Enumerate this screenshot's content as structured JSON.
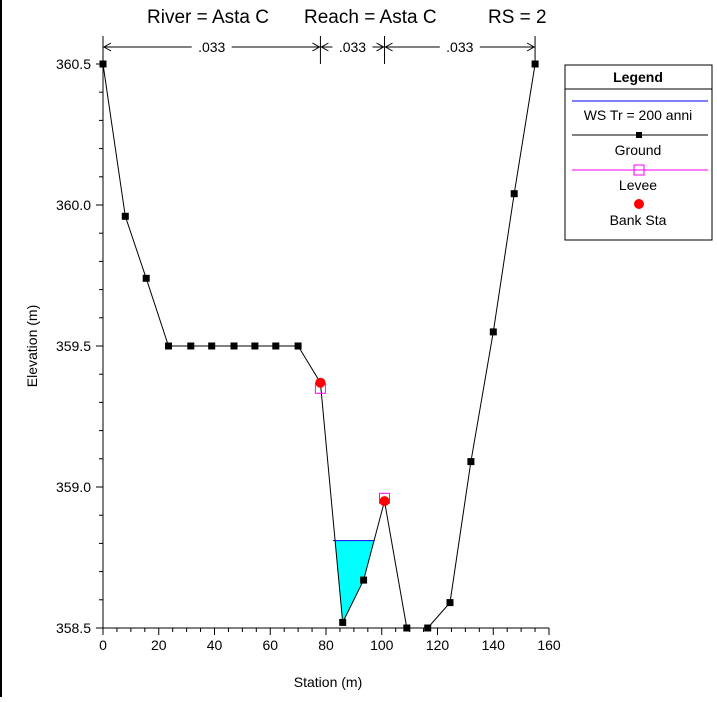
{
  "chart_data": {
    "type": "line",
    "title_parts": {
      "river": "River = Asta C",
      "reach": "Reach = Asta C",
      "rs": "RS = 2"
    },
    "xlabel": "Station (m)",
    "ylabel": "Elevation (m)",
    "xlim": [
      0,
      160
    ],
    "ylim": [
      358.5,
      360.5
    ],
    "xticks": [
      0,
      20,
      40,
      60,
      80,
      100,
      120,
      140,
      160
    ],
    "yticks": [
      358.5,
      359.0,
      359.5,
      360.0,
      360.5
    ],
    "ytick_labels": [
      "358.5",
      "359.0",
      "359.5",
      "360.0",
      "360.5"
    ],
    "mannings_n": [
      {
        "from": 0,
        "to": 78,
        "label": ".033"
      },
      {
        "from": 78,
        "to": 101,
        "label": ".033"
      },
      {
        "from": 101,
        "to": 155,
        "label": ".033"
      }
    ],
    "legend": {
      "title": "Legend",
      "entries": [
        {
          "label": "WS Tr = 200 anni",
          "color": "#0000ff",
          "marker": "none"
        },
        {
          "label": "Ground",
          "color": "#000000",
          "marker": "square"
        },
        {
          "label": "Levee",
          "color": "#ff00ff",
          "marker": "open-square"
        },
        {
          "label": "Bank Sta",
          "color": "#ff0000",
          "marker": "circle"
        }
      ]
    },
    "series": [
      {
        "name": "Ground",
        "x": [
          0,
          8,
          15.5,
          23.5,
          31.5,
          39,
          47,
          54.5,
          62,
          70,
          78,
          86,
          93.5,
          101,
          109,
          116.5,
          124.5,
          132,
          140,
          147.5,
          155
        ],
        "y": [
          360.5,
          359.96,
          359.74,
          359.5,
          359.5,
          359.5,
          359.5,
          359.5,
          359.5,
          359.5,
          359.37,
          358.52,
          358.67,
          358.95,
          358.5,
          358.5,
          358.59,
          359.09,
          359.55,
          360.04,
          360.5
        ]
      },
      {
        "name": "WS Tr = 200 anni",
        "elevation": 358.81,
        "x": [
          82.5,
          97.5
        ]
      },
      {
        "name": "Levee",
        "x": [
          78,
          101
        ],
        "y": [
          359.35,
          358.96
        ]
      },
      {
        "name": "Bank Sta",
        "x": [
          78,
          101
        ],
        "y": [
          359.37,
          358.95
        ]
      }
    ],
    "ws_fill_color": "#00ffff",
    "grid": false
  }
}
